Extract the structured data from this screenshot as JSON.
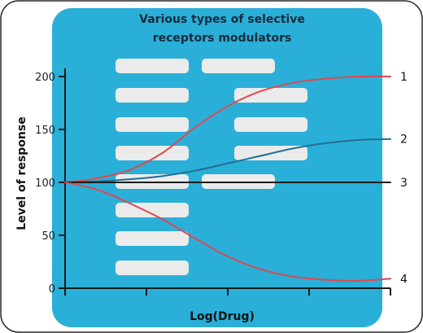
{
  "chart_data": {
    "type": "line",
    "title_lines": [
      "Various types of selective",
      "receptors modulators"
    ],
    "xlabel": "Log(Drug)",
    "ylabel": "Level of response",
    "ylim": [
      0,
      200
    ],
    "yticks": [
      0,
      50,
      100,
      150,
      200
    ],
    "xlim": [
      0,
      10
    ],
    "x_tick_count": 5,
    "grid": false,
    "legend": "labels at right end of each curve",
    "series": [
      {
        "name": "1",
        "color": "#e0484f",
        "x": [
          0,
          1,
          2,
          3,
          4,
          5,
          6,
          7,
          8,
          9,
          10
        ],
        "y": [
          100,
          104,
          112,
          128,
          152,
          172,
          186,
          194,
          198,
          200,
          200
        ]
      },
      {
        "name": "2",
        "color": "#1f6f92",
        "x": [
          0,
          1,
          2,
          3,
          4,
          5,
          6,
          7,
          8,
          9,
          10
        ],
        "y": [
          100,
          101,
          103,
          106,
          111,
          118,
          125,
          132,
          137,
          140,
          141
        ]
      },
      {
        "name": "3",
        "color": "#1b1b1b",
        "x": [
          0,
          10
        ],
        "y": [
          100,
          100
        ]
      },
      {
        "name": "4",
        "color": "#e0484f",
        "x": [
          0,
          1,
          2,
          3,
          4,
          5,
          6,
          7,
          8,
          9,
          10
        ],
        "y": [
          100,
          93,
          80,
          65,
          47,
          30,
          18,
          11,
          8,
          7,
          9
        ]
      }
    ],
    "colors": {
      "panel": "#2aafd8",
      "placeholder": "#ebebeb",
      "axis": "#1b1b1b",
      "frame_border": "#2a2a2a"
    }
  }
}
